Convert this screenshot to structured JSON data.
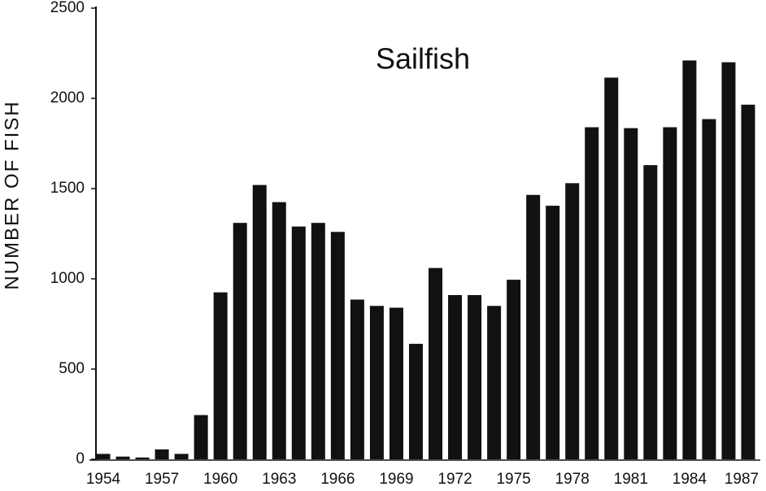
{
  "chart_data": {
    "type": "bar",
    "title": "Sailfish",
    "y_label": "NUMBER OF FISH",
    "categories": [
      "1954",
      null,
      null,
      "1957",
      null,
      null,
      "1960",
      null,
      null,
      "1963",
      null,
      null,
      "1966",
      null,
      null,
      "1969",
      null,
      null,
      "1972",
      null,
      null,
      "1975",
      null,
      null,
      "1978",
      null,
      null,
      "1981",
      null,
      null,
      "1984",
      null,
      null,
      "1987"
    ],
    "values": [
      30,
      15,
      10,
      55,
      30,
      245,
      925,
      1310,
      1520,
      1425,
      1290,
      1310,
      1260,
      885,
      850,
      840,
      640,
      1060,
      910,
      910,
      850,
      995,
      1465,
      1405,
      1530,
      1840,
      2115,
      1835,
      1630,
      1840,
      2210,
      1885,
      2200,
      1965
    ],
    "color": "#111111",
    "ylim": [
      0,
      2500
    ],
    "yticks": [
      0,
      500,
      1000,
      1500,
      2000,
      2500
    ],
    "grid": false
  }
}
